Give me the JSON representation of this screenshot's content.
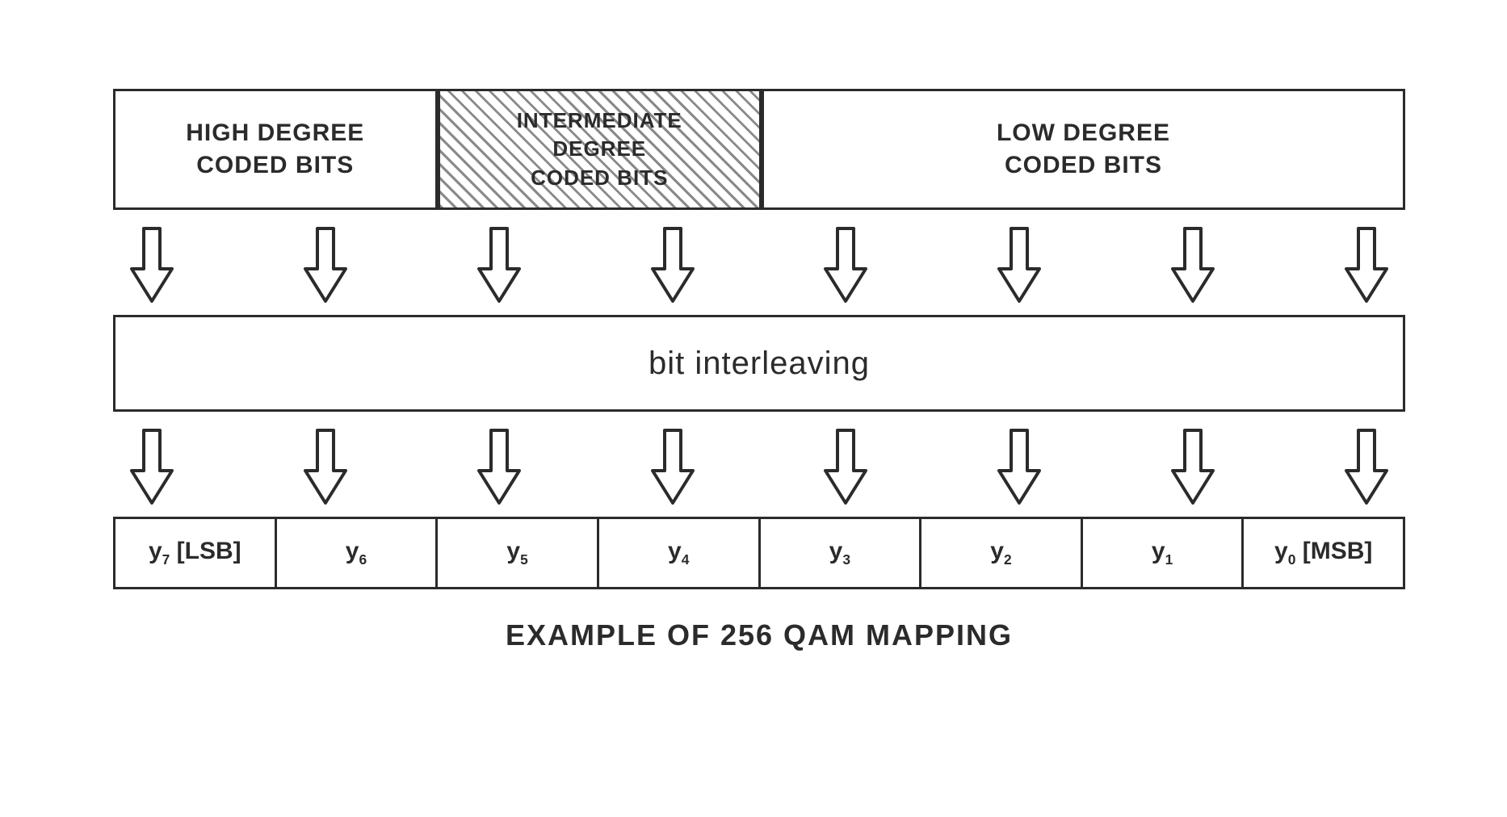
{
  "top_sections": [
    {
      "label": "HIGH DEGREE\nCODED BITS",
      "flex": 2,
      "hatched": false,
      "fontsize": 30
    },
    {
      "label": "INTERMEDIATE\nDEGREE\nCODED BITS",
      "flex": 2,
      "hatched": true,
      "fontsize": 26
    },
    {
      "label": "LOW DEGREE\nCODED BITS",
      "flex": 4,
      "hatched": false,
      "fontsize": 30
    }
  ],
  "arrow_count": 8,
  "interleave_label": "bit interleaving",
  "bottom_cells": [
    {
      "var": "y",
      "sub": "7",
      "suffix": " [LSB]"
    },
    {
      "var": "y",
      "sub": "6",
      "suffix": ""
    },
    {
      "var": "y",
      "sub": "5",
      "suffix": ""
    },
    {
      "var": "y",
      "sub": "4",
      "suffix": ""
    },
    {
      "var": "y",
      "sub": "3",
      "suffix": ""
    },
    {
      "var": "y",
      "sub": "2",
      "suffix": ""
    },
    {
      "var": "y",
      "sub": "1",
      "suffix": ""
    },
    {
      "var": "y",
      "sub": "0",
      "suffix": " [MSB]"
    }
  ],
  "caption": "EXAMPLE OF 256 QAM MAPPING",
  "colors": {
    "stroke": "#2b2b2b",
    "background": "#ffffff",
    "hatch_fg": "#8a8a8a",
    "hatch_bg": "#ffffff"
  },
  "arrow_svg": {
    "stroke_width": 4,
    "fill": "#ffffff"
  }
}
